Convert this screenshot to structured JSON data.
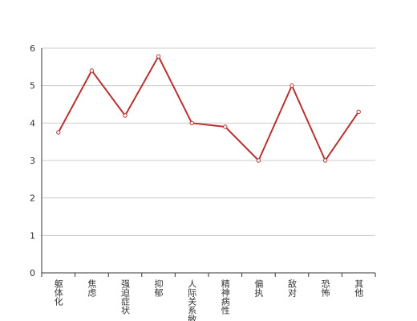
{
  "chart_data": {
    "type": "line",
    "categories": [
      "躯体化",
      "焦虑",
      "强迫症状",
      "抑郁",
      "人际关系敏感",
      "精神病性",
      "偏执",
      "敌对",
      "恐怖",
      "其他"
    ],
    "series": [
      {
        "color": "#b83232",
        "values": [
          3.75,
          5.4,
          4.2,
          5.78,
          4.0,
          3.9,
          3.0,
          5.0,
          3.0,
          4.3
        ]
      }
    ],
    "ylim": [
      0,
      6
    ],
    "yticks": [
      0,
      1,
      2,
      3,
      4,
      5,
      6
    ],
    "grid": true
  }
}
